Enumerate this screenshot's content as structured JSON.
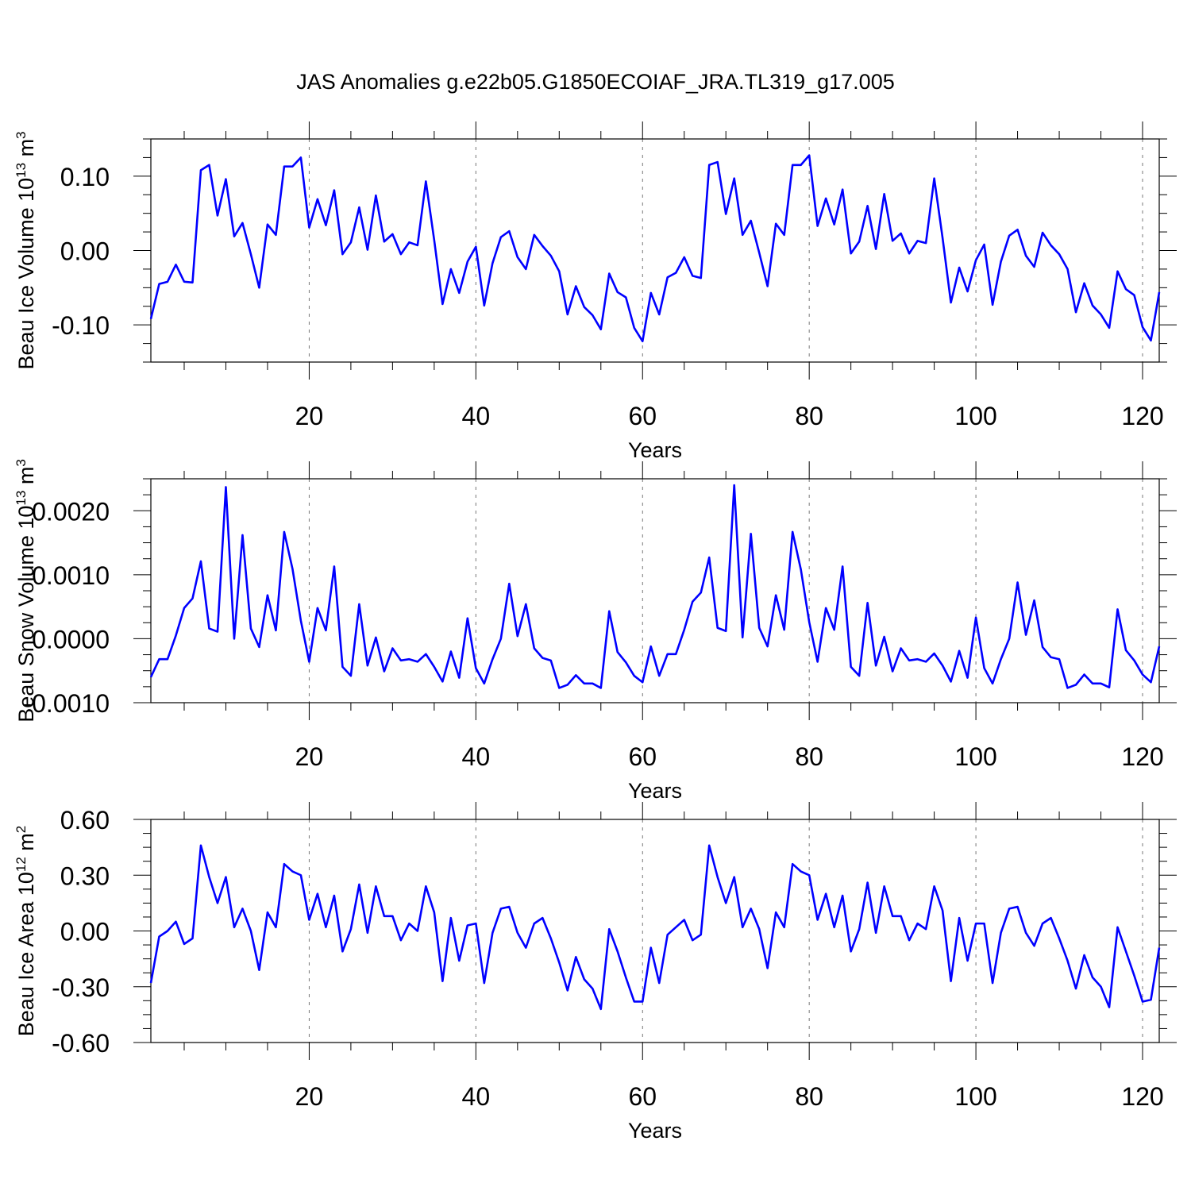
{
  "title": "JAS Anomalies g.e22b05.G1850ECOIAF_JRA.TL319_g17.005",
  "colors": {
    "line": "#0000ff",
    "axis": "#000000",
    "grid": "#777777"
  },
  "chart_data": [
    {
      "type": "line",
      "name": "ice-volume",
      "ylabel_main": "Beau Ice Volume 10",
      "ylabel_exp": "13",
      "ylabel_unit": " m",
      "ylabel_unit_exp": "3",
      "xlabel": "Years",
      "xlim": [
        1,
        122
      ],
      "ylim": [
        -0.15,
        0.15
      ],
      "yticks": [
        -0.1,
        0,
        0.1
      ],
      "ytick_labels": [
        "-0.10",
        "0.00",
        "0.10"
      ],
      "xticks": [
        20,
        40,
        60,
        80,
        100,
        120
      ],
      "xtick_labels": [
        "20",
        "40",
        "60",
        "80",
        "100",
        "120"
      ],
      "vgrid": [
        20,
        40,
        60,
        80,
        100,
        120
      ],
      "x": [
        1,
        2,
        3,
        4,
        5,
        6,
        7,
        8,
        9,
        10,
        11,
        12,
        13,
        14,
        15,
        16,
        17,
        18,
        19,
        20,
        21,
        22,
        23,
        24,
        25,
        26,
        27,
        28,
        29,
        30,
        31,
        32,
        33,
        34,
        35,
        36,
        37,
        38,
        39,
        40,
        41,
        42,
        43,
        44,
        45,
        46,
        47,
        48,
        49,
        50,
        51,
        52,
        53,
        54,
        55,
        56,
        57,
        58,
        59,
        60,
        61,
        62,
        63,
        64,
        65,
        66,
        67,
        68,
        69,
        70,
        71,
        72,
        73,
        74,
        75,
        76,
        77,
        78,
        79,
        80,
        81,
        82,
        83,
        84,
        85,
        86,
        87,
        88,
        89,
        90,
        91,
        92,
        93,
        94,
        95,
        96,
        97,
        98,
        99,
        100,
        101,
        102,
        103,
        104,
        105,
        106,
        107,
        108,
        109,
        110,
        111,
        112,
        113,
        114,
        115,
        116,
        117,
        118,
        119,
        120,
        121,
        122
      ],
      "values": [
        -0.092,
        -0.045,
        -0.042,
        -0.019,
        -0.042,
        -0.043,
        0.108,
        0.115,
        0.047,
        0.096,
        0.019,
        0.037,
        -0.005,
        -0.05,
        0.035,
        0.021,
        0.113,
        0.113,
        0.125,
        0.031,
        0.069,
        0.034,
        0.081,
        -0.005,
        0.011,
        0.058,
        0.001,
        0.074,
        0.012,
        0.022,
        -0.005,
        0.011,
        0.007,
        0.093,
        0.014,
        -0.072,
        -0.025,
        -0.057,
        -0.015,
        0.005,
        -0.074,
        -0.017,
        0.018,
        0.026,
        -0.009,
        -0.025,
        0.021,
        0.006,
        -0.007,
        -0.028,
        -0.086,
        -0.048,
        -0.076,
        -0.087,
        -0.106,
        -0.031,
        -0.056,
        -0.063,
        -0.104,
        -0.122,
        -0.057,
        -0.086,
        -0.036,
        -0.03,
        -0.009,
        -0.034,
        -0.037,
        0.115,
        0.119,
        0.049,
        0.097,
        0.021,
        0.04,
        -0.003,
        -0.048,
        0.036,
        0.021,
        0.115,
        0.115,
        0.128,
        0.033,
        0.07,
        0.035,
        0.082,
        -0.004,
        0.012,
        0.06,
        0.002,
        0.076,
        0.013,
        0.023,
        -0.004,
        0.013,
        0.01,
        0.097,
        0.017,
        -0.07,
        -0.023,
        -0.055,
        -0.013,
        0.008,
        -0.073,
        -0.015,
        0.02,
        0.028,
        -0.007,
        -0.022,
        0.024,
        0.007,
        -0.005,
        -0.025,
        -0.083,
        -0.044,
        -0.074,
        -0.086,
        -0.104,
        -0.028,
        -0.052,
        -0.06,
        -0.103,
        -0.121,
        -0.056
      ]
    },
    {
      "type": "line",
      "name": "snow-volume",
      "ylabel_main": "Beau Snow Volume 10",
      "ylabel_exp": "13",
      "ylabel_unit": " m",
      "ylabel_unit_exp": "3",
      "xlabel": "Years",
      "xlim": [
        1,
        122
      ],
      "ylim": [
        -0.001,
        0.0025
      ],
      "yticks": [
        -0.001,
        0,
        0.001,
        0.002
      ],
      "ytick_labels": [
        "-0.0010",
        "0.0000",
        "0.0010",
        "0.0020"
      ],
      "xticks": [
        20,
        40,
        60,
        80,
        100,
        120
      ],
      "xtick_labels": [
        "20",
        "40",
        "60",
        "80",
        "100",
        "120"
      ],
      "vgrid": [
        20,
        40,
        60,
        80,
        100,
        120
      ],
      "x": [
        1,
        2,
        3,
        4,
        5,
        6,
        7,
        8,
        9,
        10,
        11,
        12,
        13,
        14,
        15,
        16,
        17,
        18,
        19,
        20,
        21,
        22,
        23,
        24,
        25,
        26,
        27,
        28,
        29,
        30,
        31,
        32,
        33,
        34,
        35,
        36,
        37,
        38,
        39,
        40,
        41,
        42,
        43,
        44,
        45,
        46,
        47,
        48,
        49,
        50,
        51,
        52,
        53,
        54,
        55,
        56,
        57,
        58,
        59,
        60,
        61,
        62,
        63,
        64,
        65,
        66,
        67,
        68,
        69,
        70,
        71,
        72,
        73,
        74,
        75,
        76,
        77,
        78,
        79,
        80,
        81,
        82,
        83,
        84,
        85,
        86,
        87,
        88,
        89,
        90,
        91,
        92,
        93,
        94,
        95,
        96,
        97,
        98,
        99,
        100,
        101,
        102,
        103,
        104,
        105,
        106,
        107,
        108,
        109,
        110,
        111,
        112,
        113,
        114,
        115,
        116,
        117,
        118,
        119,
        120,
        121,
        122
      ],
      "values": [
        -0.0006,
        -0.00032,
        -0.00032,
        5e-05,
        0.00048,
        0.00063,
        0.00121,
        0.00016,
        0.00011,
        0.00237,
        0.0,
        0.00162,
        0.00016,
        -0.00013,
        0.00068,
        0.00013,
        0.00167,
        0.00109,
        0.00028,
        -0.00036,
        0.00048,
        0.00013,
        0.00113,
        -0.00044,
        -0.00058,
        0.00054,
        -0.00042,
        2e-05,
        -0.00051,
        -0.00015,
        -0.00034,
        -0.00032,
        -0.00036,
        -0.00024,
        -0.00044,
        -0.00067,
        -0.0002,
        -0.00061,
        0.00032,
        -0.00046,
        -0.0007,
        -0.00032,
        0.0,
        0.00086,
        4e-05,
        0.00054,
        -0.00015,
        -0.0003,
        -0.00034,
        -0.00077,
        -0.00072,
        -0.00057,
        -0.0007,
        -0.0007,
        -0.00077,
        0.00043,
        -0.00021,
        -0.00037,
        -0.00058,
        -0.00068,
        -0.00012,
        -0.00058,
        -0.00024,
        -0.00024,
        0.00014,
        0.00058,
        0.00072,
        0.00127,
        0.00017,
        0.00012,
        0.0024,
        2e-05,
        0.00164,
        0.00017,
        -0.00012,
        0.00068,
        0.00014,
        0.00167,
        0.00108,
        0.00026,
        -0.00036,
        0.00048,
        0.00014,
        0.00113,
        -0.00044,
        -0.00058,
        0.00056,
        -0.00042,
        3e-05,
        -0.00051,
        -0.00015,
        -0.00034,
        -0.00032,
        -0.00036,
        -0.00023,
        -0.00042,
        -0.00067,
        -0.00019,
        -0.00061,
        0.00033,
        -0.00046,
        -0.0007,
        -0.00032,
        0.0,
        0.00088,
        6e-05,
        0.0006,
        -0.00013,
        -0.00029,
        -0.00032,
        -0.00077,
        -0.00072,
        -0.00056,
        -0.0007,
        -0.0007,
        -0.00076,
        0.00046,
        -0.00018,
        -0.00034,
        -0.00056,
        -0.00068,
        -0.00012
      ]
    },
    {
      "type": "line",
      "name": "ice-area",
      "ylabel_main": "Beau Ice Area 10",
      "ylabel_exp": "12",
      "ylabel_unit": " m",
      "ylabel_unit_exp": "2",
      "xlabel": "Years",
      "xlim": [
        1,
        122
      ],
      "ylim": [
        -0.6,
        0.6
      ],
      "yticks": [
        -0.6,
        -0.3,
        0,
        0.3,
        0.6
      ],
      "ytick_labels": [
        "-0.60",
        "-0.30",
        "0.00",
        "0.30",
        "0.60"
      ],
      "xticks": [
        20,
        40,
        60,
        80,
        100,
        120
      ],
      "xtick_labels": [
        "20",
        "40",
        "60",
        "80",
        "100",
        "120"
      ],
      "vgrid": [
        20,
        40,
        60,
        80,
        100,
        120
      ],
      "x": [
        1,
        2,
        3,
        4,
        5,
        6,
        7,
        8,
        9,
        10,
        11,
        12,
        13,
        14,
        15,
        16,
        17,
        18,
        19,
        20,
        21,
        22,
        23,
        24,
        25,
        26,
        27,
        28,
        29,
        30,
        31,
        32,
        33,
        34,
        35,
        36,
        37,
        38,
        39,
        40,
        41,
        42,
        43,
        44,
        45,
        46,
        47,
        48,
        49,
        50,
        51,
        52,
        53,
        54,
        55,
        56,
        57,
        58,
        59,
        60,
        61,
        62,
        63,
        64,
        65,
        66,
        67,
        68,
        69,
        70,
        71,
        72,
        73,
        74,
        75,
        76,
        77,
        78,
        79,
        80,
        81,
        82,
        83,
        84,
        85,
        86,
        87,
        88,
        89,
        90,
        91,
        92,
        93,
        94,
        95,
        96,
        97,
        98,
        99,
        100,
        101,
        102,
        103,
        104,
        105,
        106,
        107,
        108,
        109,
        110,
        111,
        112,
        113,
        114,
        115,
        116,
        117,
        118,
        119,
        120,
        121,
        122
      ],
      "values": [
        -0.28,
        -0.03,
        0.0,
        0.05,
        -0.07,
        -0.04,
        0.46,
        0.29,
        0.15,
        0.29,
        0.02,
        0.12,
        0.0,
        -0.21,
        0.1,
        0.02,
        0.36,
        0.32,
        0.3,
        0.06,
        0.2,
        0.02,
        0.19,
        -0.11,
        0.01,
        0.25,
        -0.01,
        0.24,
        0.08,
        0.08,
        -0.05,
        0.04,
        0.0,
        0.24,
        0.1,
        -0.27,
        0.07,
        -0.16,
        0.03,
        0.04,
        -0.28,
        -0.01,
        0.12,
        0.13,
        -0.01,
        -0.09,
        0.04,
        0.07,
        -0.04,
        -0.17,
        -0.32,
        -0.14,
        -0.26,
        -0.31,
        -0.42,
        0.01,
        -0.11,
        -0.25,
        -0.38,
        -0.38,
        -0.09,
        -0.28,
        -0.02,
        0.02,
        0.06,
        -0.05,
        -0.02,
        0.46,
        0.29,
        0.15,
        0.29,
        0.02,
        0.12,
        0.01,
        -0.2,
        0.1,
        0.02,
        0.36,
        0.32,
        0.3,
        0.06,
        0.2,
        0.02,
        0.19,
        -0.11,
        0.01,
        0.26,
        -0.01,
        0.24,
        0.08,
        0.08,
        -0.05,
        0.04,
        0.01,
        0.24,
        0.11,
        -0.27,
        0.07,
        -0.16,
        0.04,
        0.04,
        -0.28,
        -0.01,
        0.12,
        0.13,
        -0.01,
        -0.08,
        0.04,
        0.07,
        -0.04,
        -0.16,
        -0.31,
        -0.13,
        -0.25,
        -0.3,
        -0.41,
        0.02,
        -0.11,
        -0.24,
        -0.38,
        -0.37,
        -0.09
      ]
    }
  ]
}
